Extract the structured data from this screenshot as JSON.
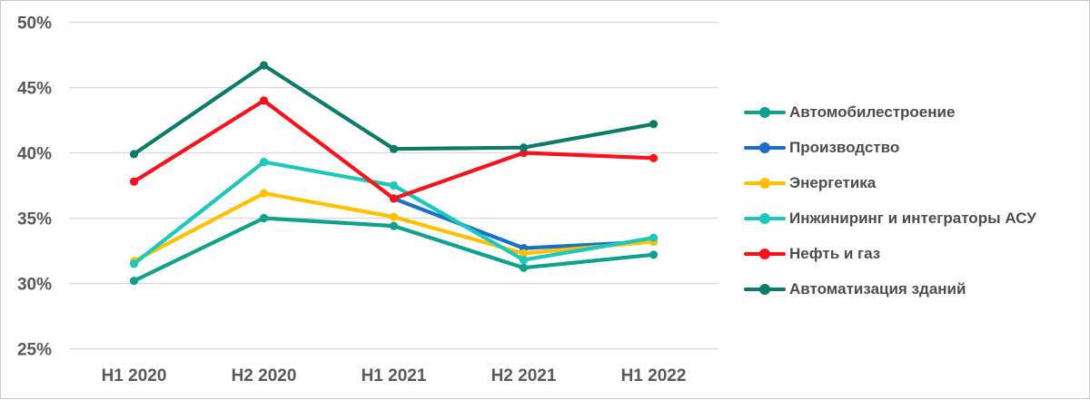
{
  "chart_data": {
    "type": "line",
    "title": "",
    "categories": [
      "H1 2020",
      "H2 2020",
      "H1 2021",
      "H2 2021",
      "H1 2022"
    ],
    "series": [
      {
        "name": "Автомобилестроение",
        "color": "#0EA18C",
        "values": [
          30.2,
          35.0,
          34.4,
          31.2,
          32.2
        ]
      },
      {
        "name": "Производство",
        "color": "#1A70C6",
        "values": [
          null,
          null,
          36.5,
          32.7,
          33.2
        ]
      },
      {
        "name": "Энергетика",
        "color": "#FFC000",
        "values": [
          31.7,
          36.9,
          35.1,
          32.3,
          33.2
        ]
      },
      {
        "name": "Инжиниринг и интеграторы АСУ",
        "color": "#1CC7BC",
        "values": [
          31.5,
          39.3,
          37.5,
          31.8,
          33.5
        ]
      },
      {
        "name": "Нефть и газ",
        "color": "#F9121C",
        "values": [
          37.8,
          44.0,
          36.5,
          40.0,
          39.6
        ]
      },
      {
        "name": "Автоматизация зданий",
        "color": "#0C7B68",
        "values": [
          39.9,
          46.7,
          40.3,
          40.4,
          42.2
        ]
      }
    ],
    "ylim": [
      25,
      50
    ],
    "yticks": [
      50,
      45,
      40,
      35,
      30,
      25
    ],
    "ytick_labels": [
      "50%",
      "45%",
      "40%",
      "35%",
      "30%",
      "25%"
    ],
    "xlabel": "",
    "ylabel": "",
    "grid": true,
    "legend_position": "right"
  },
  "colors": {
    "gridline": "#D9D9D9",
    "axis_label": "#595959",
    "legend_text": "#4d4d4d",
    "frame_border": "#C9C9C9",
    "background": "#FFFFFF"
  }
}
